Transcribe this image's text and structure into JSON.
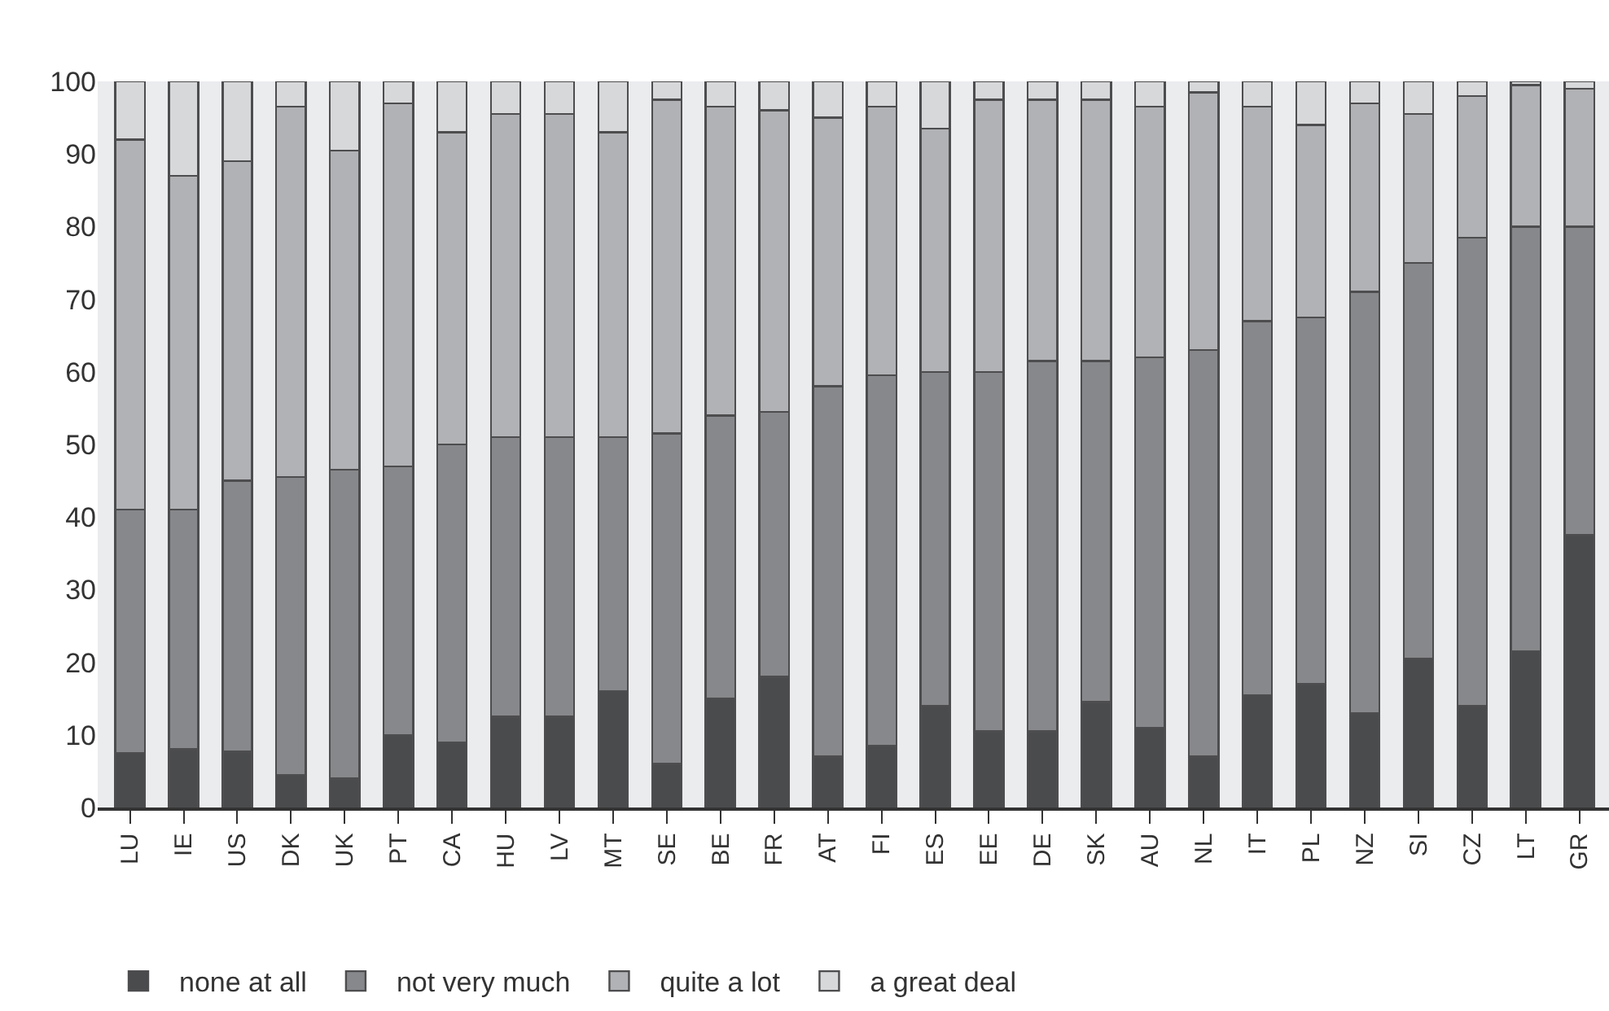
{
  "chart_data": {
    "type": "bar",
    "stacked": true,
    "categories": [
      "LU",
      "IE",
      "US",
      "DK",
      "UK",
      "PT",
      "CA",
      "HU",
      "LV",
      "MT",
      "SE",
      "BE",
      "FR",
      "AT",
      "FI",
      "ES",
      "EE",
      "DE",
      "SK",
      "AU",
      "NL",
      "IT",
      "PL",
      "NZ",
      "SI",
      "CZ",
      "LT",
      "GR"
    ],
    "series": [
      {
        "name": "none at all",
        "color": "#4a4b4d",
        "values": [
          7.5,
          8,
          7.7,
          4.5,
          4,
          10,
          9,
          12.5,
          12.5,
          16,
          6,
          15,
          18,
          7,
          8.5,
          14,
          10.5,
          10.5,
          14.5,
          11,
          7,
          15.5,
          17,
          13,
          20.5,
          14,
          21.5,
          37.5
        ]
      },
      {
        "name": "not very much",
        "color": "#87888b",
        "values": [
          33.5,
          33,
          37.3,
          41,
          42.5,
          37,
          41,
          38.5,
          38.5,
          35,
          45.5,
          39,
          36.5,
          51,
          51,
          46,
          49.5,
          51,
          47,
          51,
          56,
          51.5,
          50.5,
          58,
          54.5,
          64.5,
          58.5,
          42.5
        ]
      },
      {
        "name": "quite a lot",
        "color": "#b1b2b5",
        "values": [
          51,
          46,
          44,
          51,
          44,
          50,
          43,
          44.5,
          44.5,
          42,
          46,
          42.5,
          41.5,
          37,
          37,
          33.5,
          37.5,
          36,
          36,
          34.5,
          35.5,
          29.5,
          26.5,
          26,
          20.5,
          19.5,
          19.5,
          19
        ]
      },
      {
        "name": "a great deal",
        "color": "#d7d8da",
        "values": [
          8,
          13,
          11,
          3.5,
          9.5,
          3,
          7,
          4.5,
          4.5,
          7,
          2.5,
          3.5,
          4,
          5,
          3.5,
          6.5,
          2.5,
          2.5,
          2.5,
          3.5,
          1.5,
          3.5,
          6,
          3,
          4.5,
          2,
          0.5,
          1
        ]
      }
    ],
    "ylim": [
      0,
      100
    ],
    "yticks": [
      0,
      10,
      20,
      30,
      40,
      50,
      60,
      70,
      80,
      90,
      100
    ],
    "grid": false,
    "legend": "bottom left"
  }
}
